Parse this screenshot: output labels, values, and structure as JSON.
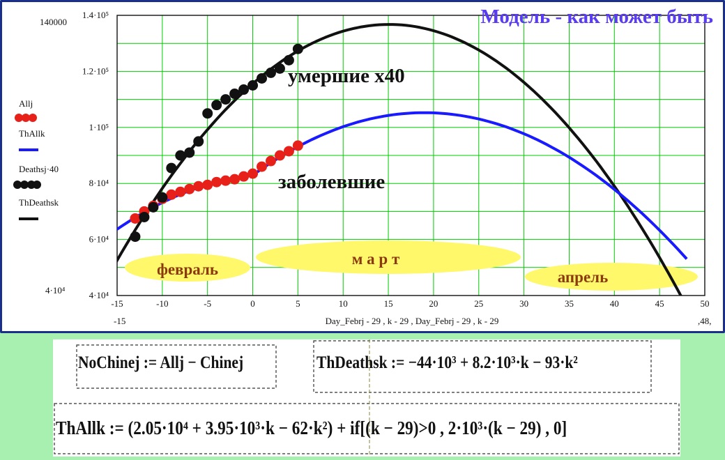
{
  "title": "Модель - как может быть",
  "chart_data": {
    "type": "scatter",
    "xlim": [
      -15,
      50
    ],
    "ylim": [
      40000,
      140000
    ],
    "x_ticks": [
      "-15",
      "-10",
      "-5",
      "0",
      "5",
      "10",
      "15",
      "20",
      "25",
      "30",
      "35",
      "40",
      "45",
      "50"
    ],
    "y_ticks": [
      "4·10⁴",
      "6·10⁴",
      "8·10⁴",
      "1·10⁵",
      "1.2·10⁵",
      "1.4·10⁵"
    ],
    "y_extra_labels": {
      "top": "140000",
      "bottom": "4·10⁴"
    },
    "x_extra_labels": {
      "left": "-15",
      "right": ",48,"
    },
    "xlabel": "Day_Febrj - 29 , k - 29 , Day_Febrj - 29 , k - 29",
    "grid": true,
    "legend": {
      "position": "left",
      "entries": [
        "Allj",
        "ThAllk",
        "Deathsj·40",
        "ThDeathsk"
      ]
    },
    "series": [
      {
        "name": "Allj",
        "color": "#e8201a",
        "kind": "points",
        "x": [
          -13,
          -12,
          -11,
          -10,
          -9,
          -8,
          -7,
          -6,
          -5,
          -4,
          -3,
          -2,
          -1,
          0,
          1,
          2,
          3,
          4,
          5
        ],
        "y": [
          67500,
          70000,
          72000,
          74500,
          76000,
          77000,
          78000,
          79000,
          79500,
          80500,
          81000,
          81500,
          82500,
          83500,
          86000,
          88000,
          90000,
          91500,
          93500
        ]
      },
      {
        "name": "ThAllk",
        "color": "#1a1aff",
        "kind": "line",
        "formula": "2.05e4 + 3.95e3*k - 62*k^2 + if((k-29)>0, 2e3*(k-29), 0)",
        "k_range": [
          -16,
          48
        ]
      },
      {
        "name": "Deathsj·40",
        "color": "#111111",
        "kind": "points",
        "x": [
          -13,
          -12,
          -11,
          -10,
          -9,
          -8,
          -7,
          -6,
          -5,
          -4,
          -3,
          -2,
          -1,
          0,
          1,
          2,
          3,
          4,
          5
        ],
        "y": [
          61000,
          68000,
          71500,
          75000,
          85500,
          90000,
          91000,
          95000,
          105000,
          108000,
          110000,
          112000,
          113500,
          115000,
          117500,
          119500,
          121000,
          124000,
          128000
        ]
      },
      {
        "name": "ThDeathsk",
        "color": "#111111",
        "kind": "line",
        "formula": "-44e3 + 8.2e3*k - 93*k^2",
        "k_range": [
          -16,
          48
        ]
      }
    ],
    "annotations": [
      {
        "text": "умершие x40"
      },
      {
        "text": "заболевшие"
      },
      {
        "text": "февраль"
      },
      {
        "text": "м а р т"
      },
      {
        "text": "апрель"
      }
    ]
  },
  "formulas": {
    "f1": "NoChinej := Allj − Chinej",
    "f2": "ThDeathsk := −44·10³ + 8.2·10³·k − 93·k²",
    "f3": "ThAllk := (2.05·10⁴ + 3.95·10³·k − 62·k²) + if[(k − 29)>0 , 2·10³·(k − 29) , 0]"
  },
  "colors": {
    "title": "#5a3cf0",
    "all_points": "#e8201a",
    "thall": "#1a1aff",
    "deaths": "#111111",
    "grid": "#00cc00",
    "month_bg": "#fff86a",
    "month_text": "#8b3a10"
  }
}
